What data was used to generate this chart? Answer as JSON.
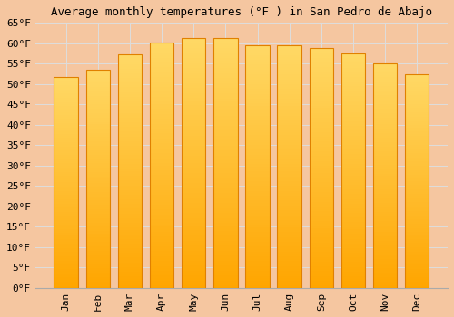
{
  "title": "Average monthly temperatures (°F ) in San Pedro de Abajo",
  "months": [
    "Jan",
    "Feb",
    "Mar",
    "Apr",
    "May",
    "Jun",
    "Jul",
    "Aug",
    "Sep",
    "Oct",
    "Nov",
    "Dec"
  ],
  "values": [
    51.8,
    53.6,
    57.2,
    60.1,
    61.3,
    61.2,
    59.5,
    59.5,
    58.8,
    57.5,
    55.0,
    52.5
  ],
  "bar_color_bottom": "#FFA500",
  "bar_color_top": "#FFD966",
  "bar_edge_color": "#E08000",
  "background_color": "#F5C6A0",
  "plot_bg_color": "#F5C6A0",
  "grid_color": "#DDDDDD",
  "ylim": [
    0,
    65
  ],
  "ytick_step": 5,
  "title_fontsize": 9,
  "tick_fontsize": 8,
  "font_family": "monospace"
}
